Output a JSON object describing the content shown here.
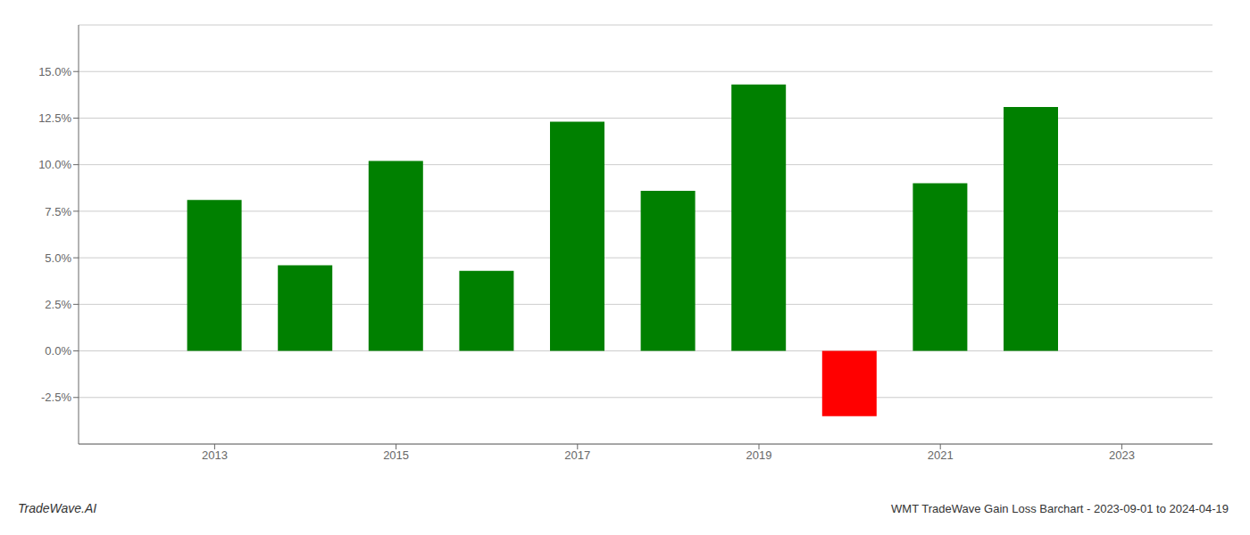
{
  "chart_data": {
    "type": "bar",
    "title": "WMT TradeWave Gain Loss Barchart - 2023-09-01 to 2024-04-19",
    "annotations": [
      "TradeWave.AI"
    ],
    "x": [
      2013,
      2014,
      2015,
      2016,
      2017,
      2018,
      2019,
      2020,
      2021,
      2022
    ],
    "values": [
      0.081,
      0.046,
      0.102,
      0.043,
      0.123,
      0.086,
      0.143,
      -0.035,
      0.09,
      0.131
    ],
    "colors": [
      "#008000",
      "#008000",
      "#008000",
      "#008000",
      "#008000",
      "#008000",
      "#008000",
      "#ff0000",
      "#008000",
      "#008000"
    ],
    "xlim": [
      2011.5,
      2024.0
    ],
    "xticks": [
      2013,
      2015,
      2017,
      2019,
      2021,
      2023
    ],
    "ylim": [
      -0.05,
      0.175
    ],
    "yticks": [
      {
        "value": -0.025,
        "label": "-2.5%"
      },
      {
        "value": 0.0,
        "label": "0.0%"
      },
      {
        "value": 0.025,
        "label": "2.5%"
      },
      {
        "value": 0.05,
        "label": "5.0%"
      },
      {
        "value": 0.075,
        "label": "7.5%"
      },
      {
        "value": 0.1,
        "label": "10.0%"
      },
      {
        "value": 0.125,
        "label": "12.5%"
      },
      {
        "value": 0.15,
        "label": "15.0%"
      }
    ],
    "grid": true
  }
}
